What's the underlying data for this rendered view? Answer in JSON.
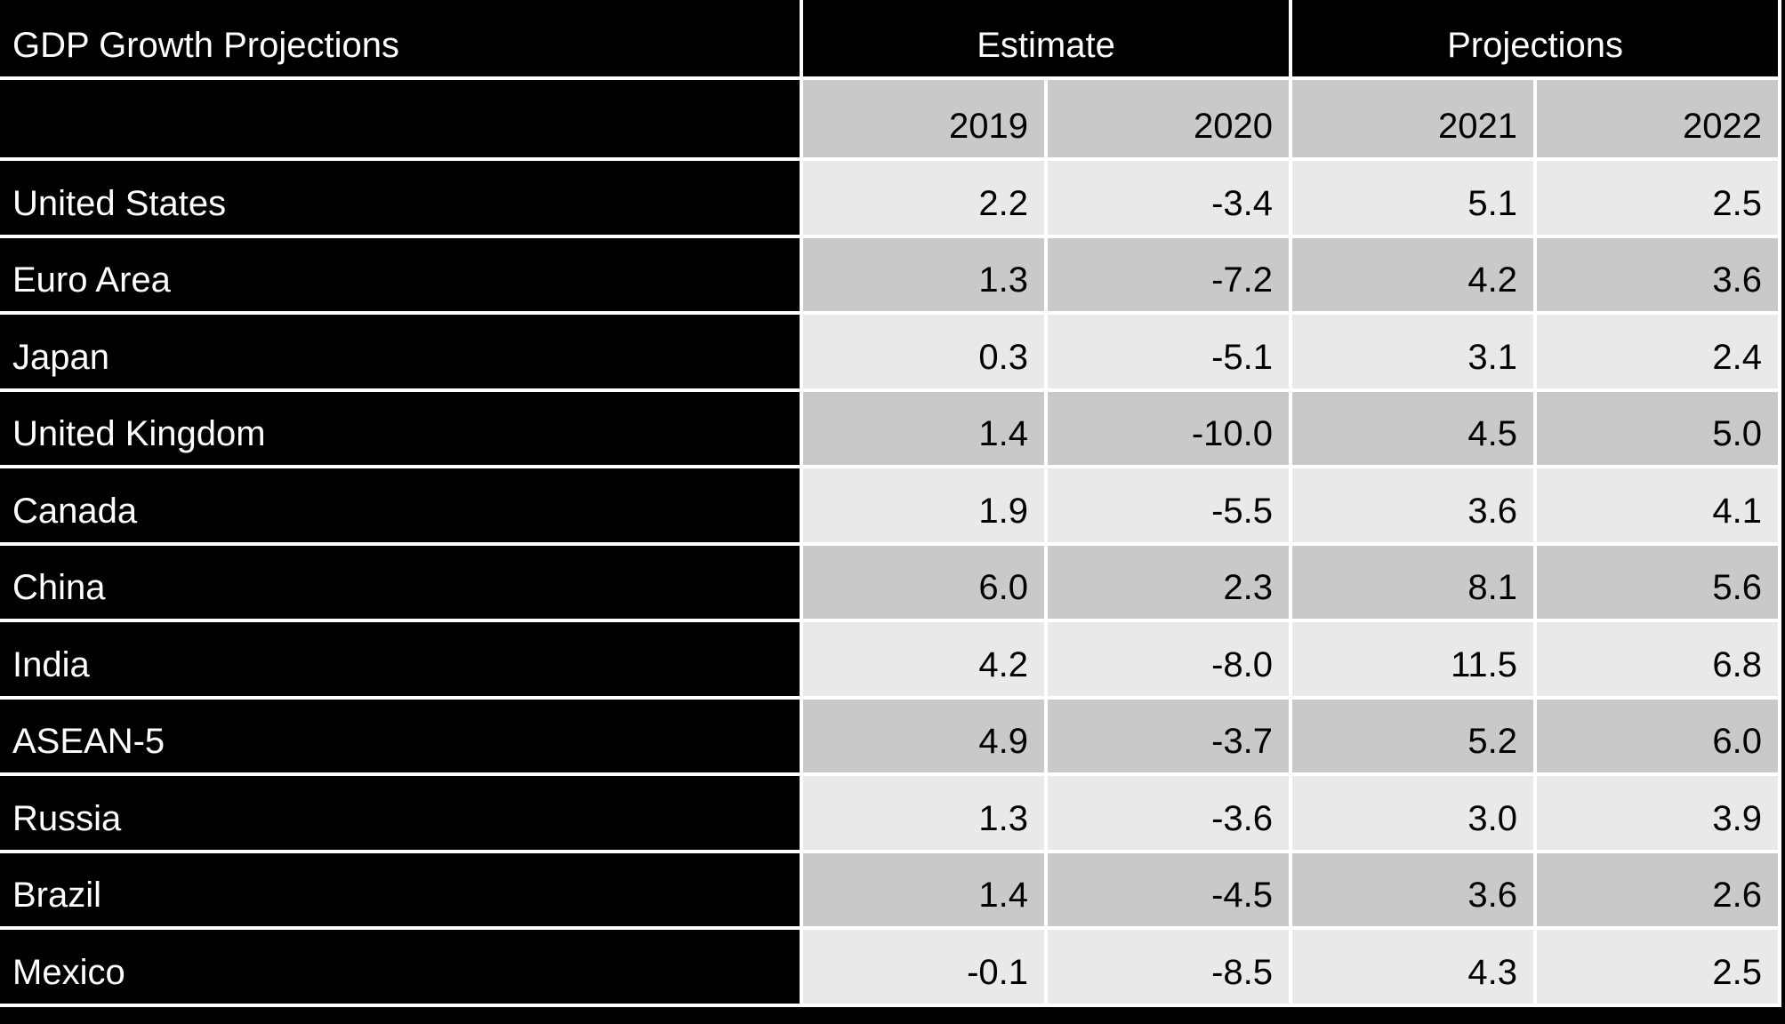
{
  "colors": {
    "page-bg": "#000000",
    "header-bg": "#000000",
    "header-text": "#ffffff",
    "row-light": "#e9e9e9",
    "row-dark": "#c9c9c9",
    "grid": "#ffffff",
    "data-text": "#000000"
  },
  "table": {
    "title": "GDP Growth Projections",
    "groups": {
      "estimate": "Estimate",
      "projections": "Projections"
    },
    "years": [
      "2019",
      "2020",
      "2021",
      "2022"
    ],
    "rows": [
      {
        "label": "United States",
        "values": [
          "2.2",
          "-3.4",
          "5.1",
          "2.5"
        ]
      },
      {
        "label": "Euro Area",
        "values": [
          "1.3",
          "-7.2",
          "4.2",
          "3.6"
        ]
      },
      {
        "label": "Japan",
        "values": [
          "0.3",
          "-5.1",
          "3.1",
          "2.4"
        ]
      },
      {
        "label": "United Kingdom",
        "values": [
          "1.4",
          "-10.0",
          "4.5",
          "5.0"
        ]
      },
      {
        "label": "Canada",
        "values": [
          "1.9",
          "-5.5",
          "3.6",
          "4.1"
        ]
      },
      {
        "label": "China",
        "values": [
          "6.0",
          "2.3",
          "8.1",
          "5.6"
        ]
      },
      {
        "label": "India",
        "values": [
          "4.2",
          "-8.0",
          "11.5",
          "6.8"
        ]
      },
      {
        "label": "ASEAN-5",
        "values": [
          "4.9",
          "-3.7",
          "5.2",
          "6.0"
        ]
      },
      {
        "label": "Russia",
        "values": [
          "1.3",
          "-3.6",
          "3.0",
          "3.9"
        ]
      },
      {
        "label": "Brazil",
        "values": [
          "1.4",
          "-4.5",
          "3.6",
          "2.6"
        ]
      },
      {
        "label": "Mexico",
        "values": [
          "-0.1",
          "-8.5",
          "4.3",
          "2.5"
        ]
      }
    ]
  },
  "chart_data": {
    "type": "table",
    "title": "GDP Growth Projections",
    "column_groups": [
      {
        "label": "Estimate",
        "columns": [
          "2019",
          "2020"
        ]
      },
      {
        "label": "Projections",
        "columns": [
          "2021",
          "2022"
        ]
      }
    ],
    "columns": [
      "2019",
      "2020",
      "2021",
      "2022"
    ],
    "row_labels": [
      "United States",
      "Euro Area",
      "Japan",
      "United Kingdom",
      "Canada",
      "China",
      "India",
      "ASEAN-5",
      "Russia",
      "Brazil",
      "Mexico"
    ],
    "values": [
      [
        2.2,
        -3.4,
        5.1,
        2.5
      ],
      [
        1.3,
        -7.2,
        4.2,
        3.6
      ],
      [
        0.3,
        -5.1,
        3.1,
        2.4
      ],
      [
        1.4,
        -10.0,
        4.5,
        5.0
      ],
      [
        1.9,
        -5.5,
        3.6,
        4.1
      ],
      [
        6.0,
        2.3,
        8.1,
        5.6
      ],
      [
        4.2,
        -8.0,
        11.5,
        6.8
      ],
      [
        4.9,
        -3.7,
        5.2,
        6.0
      ],
      [
        1.3,
        -3.6,
        3.0,
        3.9
      ],
      [
        1.4,
        -4.5,
        3.6,
        2.6
      ],
      [
        -0.1,
        -8.5,
        4.3,
        2.5
      ]
    ]
  }
}
